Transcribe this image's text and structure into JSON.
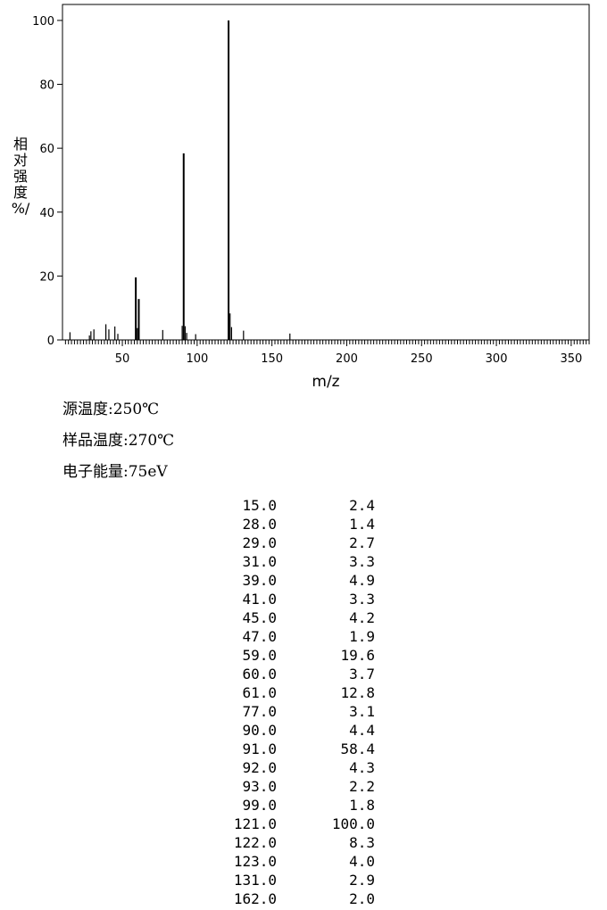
{
  "chart_data": {
    "type": "bar",
    "xlabel": "m/z",
    "ylabel": "相对强度 %/",
    "xlim": [
      10,
      362
    ],
    "ylim": [
      0,
      105
    ],
    "x_ticks": [
      50,
      100,
      150,
      200,
      250,
      300,
      350
    ],
    "y_ticks": [
      0,
      20,
      40,
      60,
      80,
      100
    ],
    "series": [
      {
        "x": [
          15.0,
          28.0,
          29.0,
          31.0,
          39.0,
          41.0,
          45.0,
          47.0,
          59.0,
          60.0,
          61.0,
          77.0,
          90.0,
          91.0,
          92.0,
          93.0,
          99.0,
          121.0,
          122.0,
          123.0,
          131.0,
          162.0
        ],
        "values": [
          2.4,
          1.4,
          2.7,
          3.3,
          4.9,
          3.3,
          4.2,
          1.9,
          19.6,
          3.7,
          12.8,
          3.1,
          4.4,
          58.4,
          4.3,
          2.2,
          1.8,
          100.0,
          8.3,
          4.0,
          2.9,
          2.0
        ]
      }
    ]
  },
  "ylabel_chars": [
    "相",
    "对",
    "强",
    "度",
    "%/"
  ],
  "params": [
    {
      "label": "源温度:",
      "value": "250℃"
    },
    {
      "label": "样品温度:",
      "value": "270℃"
    },
    {
      "label": "电子能量:",
      "value": "75eV"
    }
  ],
  "peaks": [
    {
      "mz": "15.0",
      "abundance": "2.4"
    },
    {
      "mz": "28.0",
      "abundance": "1.4"
    },
    {
      "mz": "29.0",
      "abundance": "2.7"
    },
    {
      "mz": "31.0",
      "abundance": "3.3"
    },
    {
      "mz": "39.0",
      "abundance": "4.9"
    },
    {
      "mz": "41.0",
      "abundance": "3.3"
    },
    {
      "mz": "45.0",
      "abundance": "4.2"
    },
    {
      "mz": "47.0",
      "abundance": "1.9"
    },
    {
      "mz": "59.0",
      "abundance": "19.6"
    },
    {
      "mz": "60.0",
      "abundance": "3.7"
    },
    {
      "mz": "61.0",
      "abundance": "12.8"
    },
    {
      "mz": "77.0",
      "abundance": "3.1"
    },
    {
      "mz": "90.0",
      "abundance": "4.4"
    },
    {
      "mz": "91.0",
      "abundance": "58.4"
    },
    {
      "mz": "92.0",
      "abundance": "4.3"
    },
    {
      "mz": "93.0",
      "abundance": "2.2"
    },
    {
      "mz": "99.0",
      "abundance": "1.8"
    },
    {
      "mz": "121.0",
      "abundance": "100.0"
    },
    {
      "mz": "122.0",
      "abundance": "8.3"
    },
    {
      "mz": "123.0",
      "abundance": "4.0"
    },
    {
      "mz": "131.0",
      "abundance": "2.9"
    },
    {
      "mz": "162.0",
      "abundance": "2.0"
    }
  ]
}
